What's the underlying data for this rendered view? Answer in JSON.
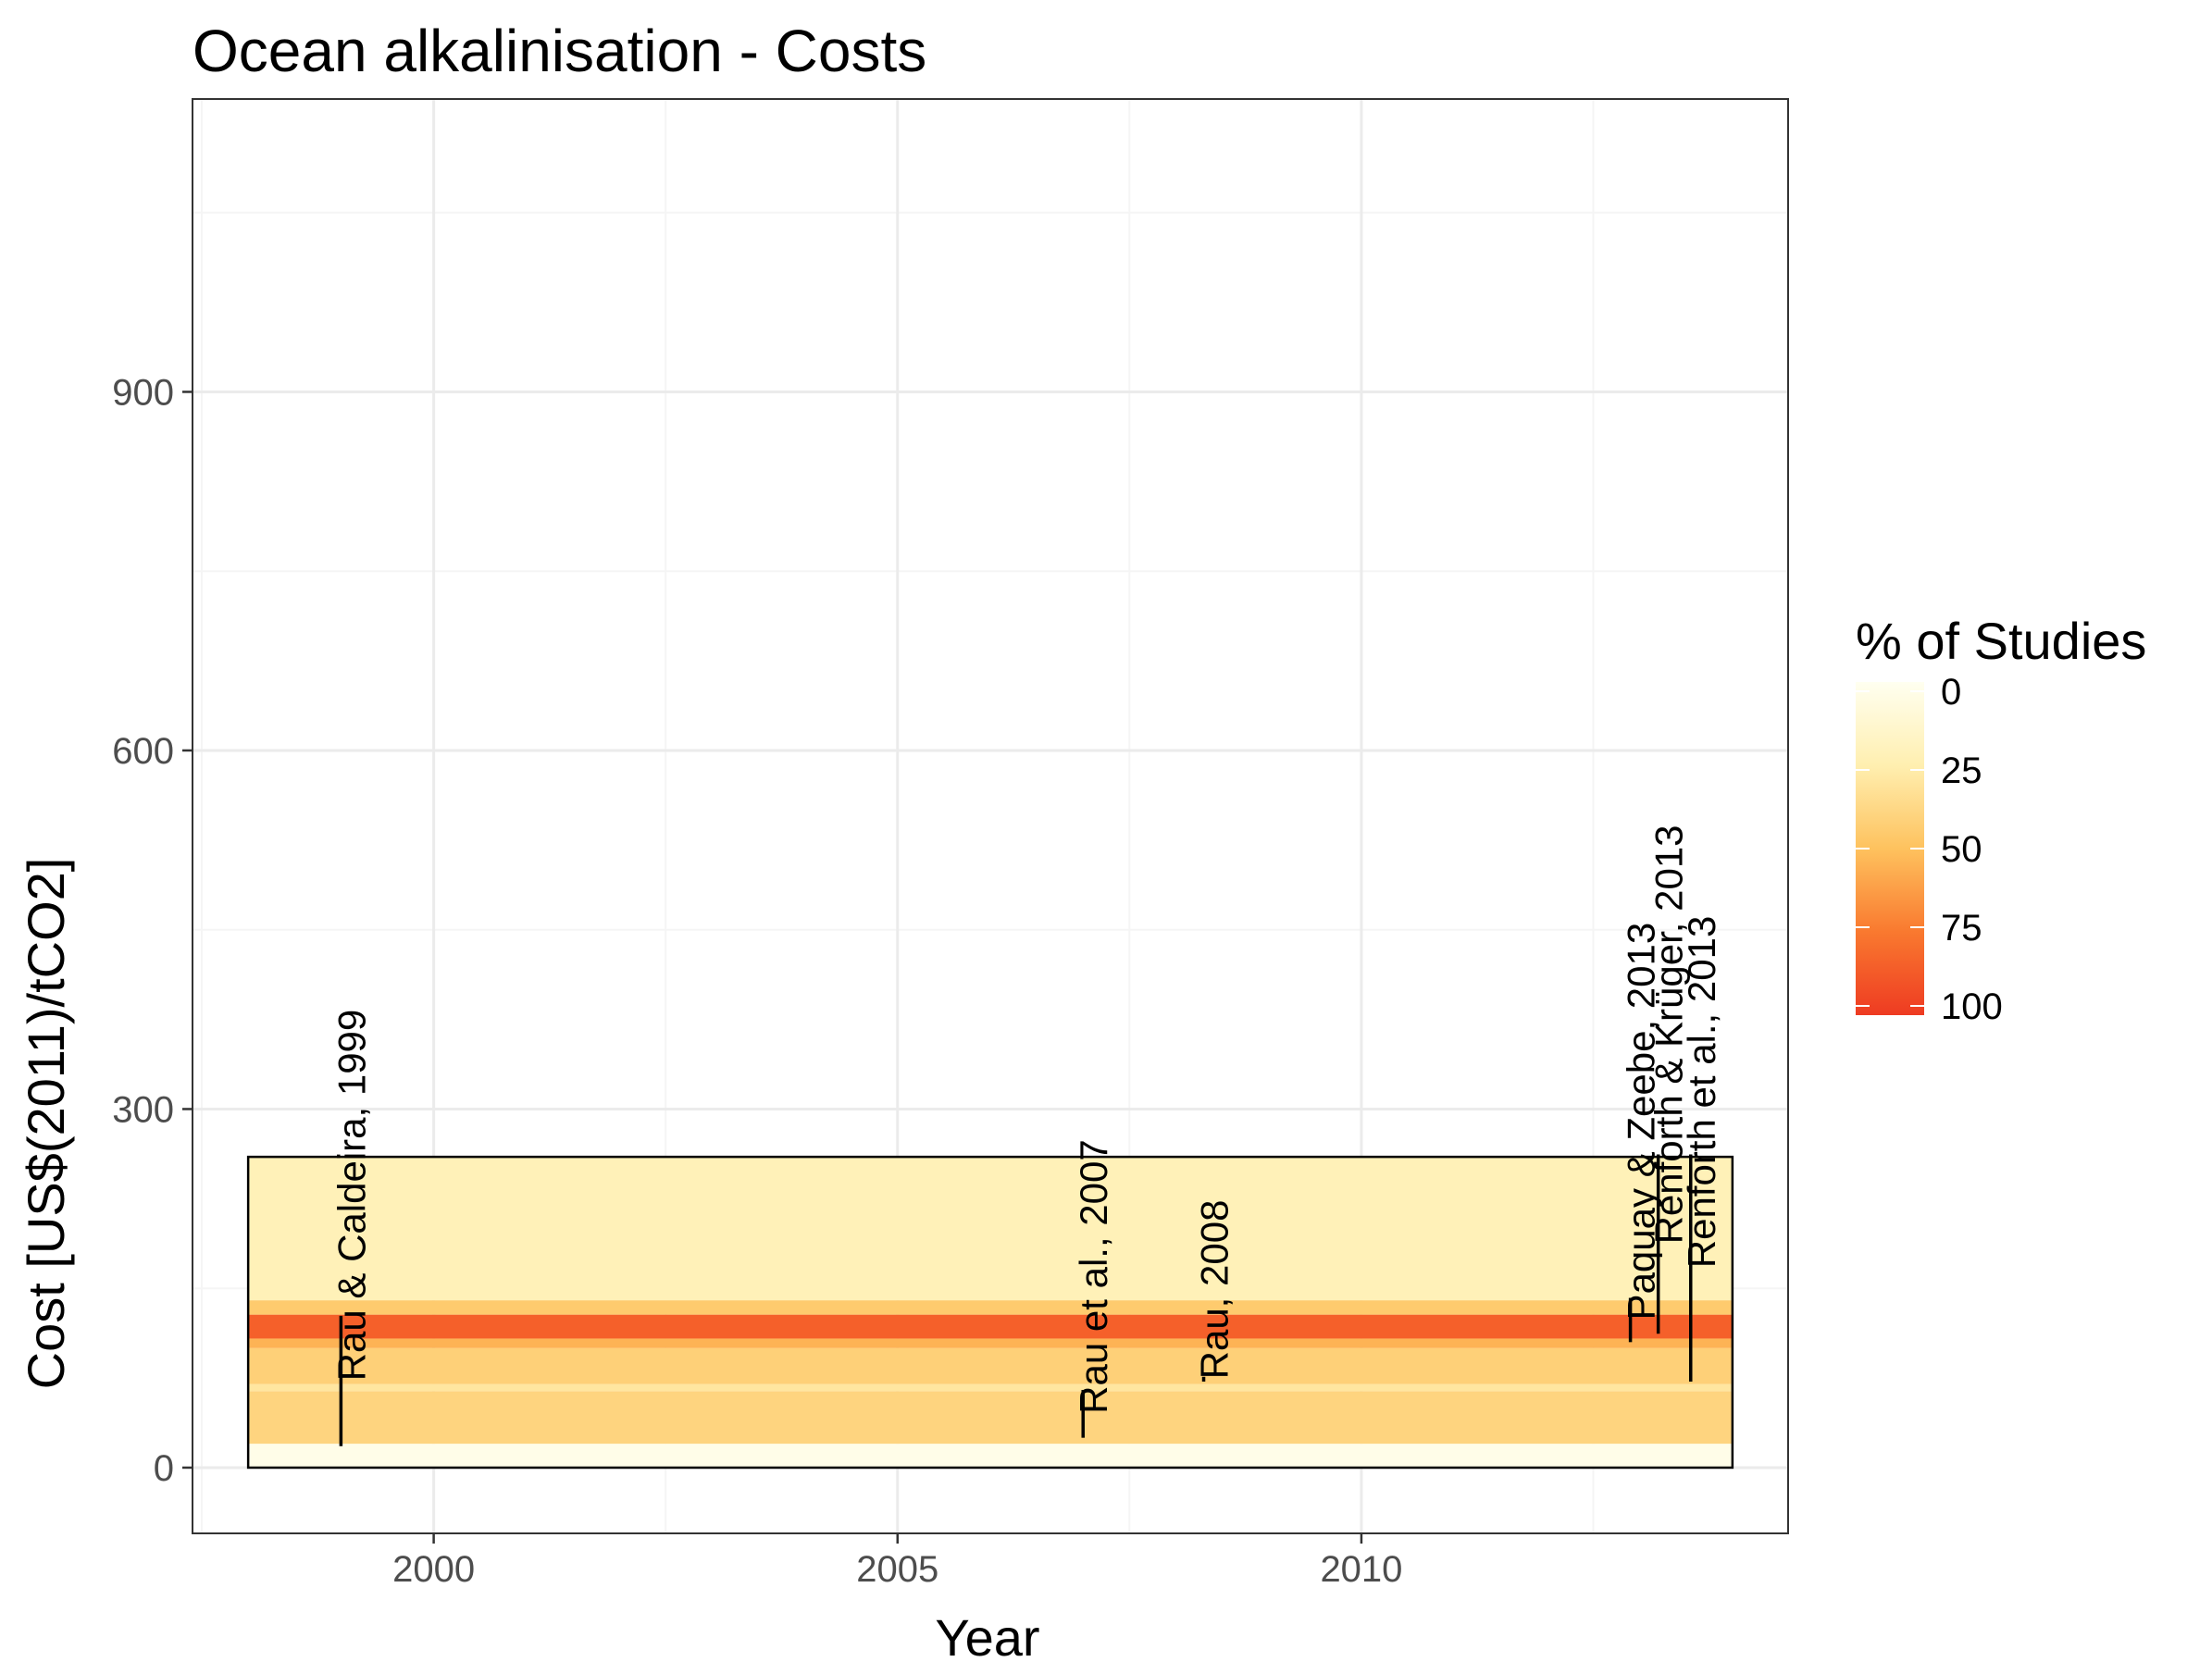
{
  "chart_data": {
    "type": "heatmap",
    "title": "Ocean alkalinisation - Costs",
    "xlabel": "Year",
    "ylabel": "Cost [US$(2011)/tCO2]",
    "xlim": [
      1997.4,
      2014.6
    ],
    "ylim": [
      -55,
      1145
    ],
    "x_ticks": [
      2000,
      2005,
      2010
    ],
    "y_ticks": [
      0,
      300,
      600,
      900
    ],
    "grid": true,
    "band_range_x": [
      1998,
      2014
    ],
    "bands": [
      {
        "y0": 0,
        "y1": 20,
        "pct": 3
      },
      {
        "y0": 20,
        "y1": 64,
        "pct": 40
      },
      {
        "y0": 64,
        "y1": 70,
        "pct": 30
      },
      {
        "y0": 70,
        "y1": 100,
        "pct": 42
      },
      {
        "y0": 100,
        "y1": 108,
        "pct": 55
      },
      {
        "y0": 108,
        "y1": 128,
        "pct": 85
      },
      {
        "y0": 128,
        "y1": 140,
        "pct": 45
      },
      {
        "y0": 140,
        "y1": 260,
        "pct": 22
      }
    ],
    "studies": [
      {
        "label": "Rau & Caldeira, 1999",
        "x": 1999.0,
        "ymin": 18,
        "ymax": 127
      },
      {
        "label": "Rau et al., 2007",
        "x": 2007.0,
        "ymin": 25,
        "ymax": 65
      },
      {
        "label": "Rau, 2008",
        "x": 2008.3,
        "ymin": 72,
        "ymax": 76
      },
      {
        "label": "Paquay & Zeebe, 2013",
        "x": 2012.9,
        "ymin": 105,
        "ymax": 142
      },
      {
        "label": "Renforth & Krüger, 2013",
        "x": 2013.2,
        "ymin": 112,
        "ymax": 262
      },
      {
        "label": "Renforth et al., 2013",
        "x": 2013.55,
        "ymin": 72,
        "ymax": 262
      }
    ],
    "legend": {
      "title": "% of Studies",
      "position": "right",
      "ticks": [
        0,
        25,
        50,
        75,
        100
      ]
    },
    "colors": {
      "scale": [
        "#FFFFF0",
        "#FFEFB0",
        "#FEC25E",
        "#F9792F",
        "#EE3B22"
      ],
      "line": "#000000",
      "grid_major": "#EBEBEB",
      "grid_minor": "#F5F5F5",
      "panel_border": "#333333"
    }
  }
}
